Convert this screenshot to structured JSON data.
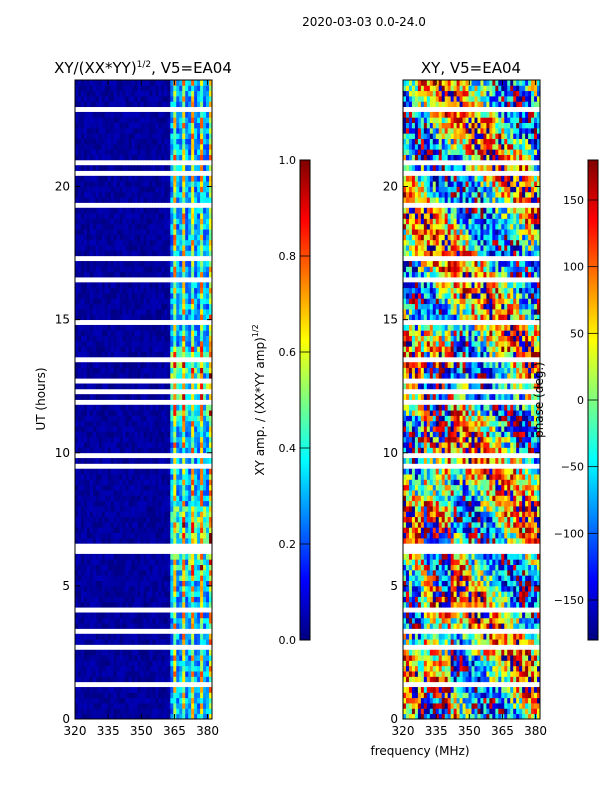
{
  "figure": {
    "suptitle": "2020-03-03 0.0-24.0",
    "shared_xlabel": "frequency (MHz)"
  },
  "colors": {
    "jet": [
      "#00007f",
      "#0000ff",
      "#007fff",
      "#00ffff",
      "#7fff7f",
      "#ffff00",
      "#ff7f00",
      "#ff0000",
      "#7f0000"
    ],
    "gap": "#ffffff",
    "axis": "#000000"
  },
  "chart_data": [
    {
      "type": "heatmap",
      "title": "XY/(XX*YY)",
      "title_exp": "1/2",
      "title_suffix": ", V5=EA04",
      "xlabel": "",
      "ylabel": "UT (hours)",
      "xlim": [
        320,
        382
      ],
      "ylim": [
        0,
        24
      ],
      "xticks": [
        320,
        335,
        350,
        365,
        380
      ],
      "yticks": [
        0,
        5,
        10,
        15,
        20
      ],
      "quantity": "normalized XY amplitude",
      "colorbar": {
        "label": "XY amp. / (XX*YY amp)",
        "label_exp": "1/2",
        "range": [
          0.0,
          1.0
        ],
        "ticks": [
          "0.0",
          "0.2",
          "0.4",
          "0.6",
          "0.8",
          "1.0"
        ]
      }
    },
    {
      "type": "heatmap",
      "title": "XY, V5=EA04",
      "xlabel": "frequency (MHz)",
      "ylabel": "",
      "xlim": [
        320,
        382
      ],
      "ylim": [
        0,
        24
      ],
      "xticks": [
        320,
        335,
        350,
        365,
        380
      ],
      "yticks": [
        0,
        5,
        10,
        15,
        20
      ],
      "quantity": "XY phase",
      "colorbar": {
        "label": "phase (deg.)",
        "range": [
          -180,
          180
        ],
        "ticks": [
          "−150",
          "−100",
          "−50",
          "0",
          "50",
          "100",
          "150"
        ]
      }
    }
  ]
}
